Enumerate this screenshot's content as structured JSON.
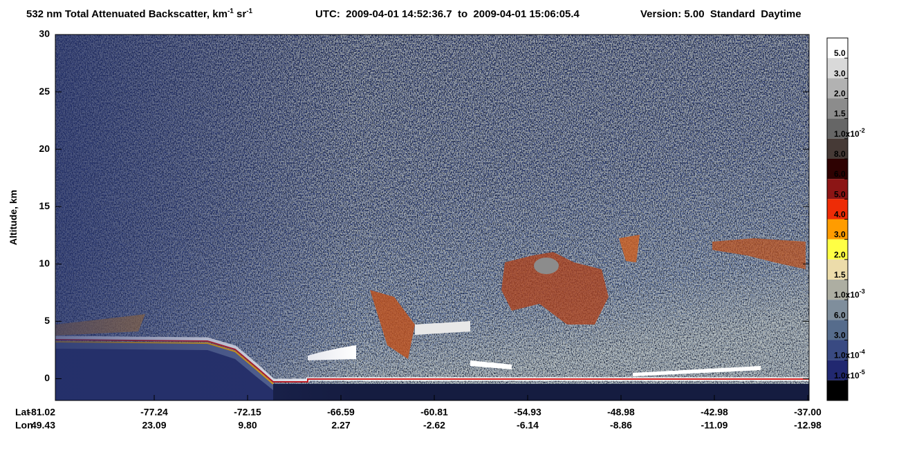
{
  "chart_data": {
    "type": "curtain",
    "title": {
      "text": "532 nm Total Attenuated Backscatter, km",
      "sup1": "-1",
      "mid": " sr",
      "sup2": "-1"
    },
    "utc": "UTC:  2009-04-01 14:52:36.7  to  2009-04-01 15:06:05.4",
    "version": "Version: 5.00  Standard  Daytime",
    "y_label": "Altitude, km",
    "ylim": [
      -1.9,
      30
    ],
    "yticks": [
      0,
      5,
      10,
      15,
      20,
      25,
      30
    ],
    "x_row_labels": [
      "Lat",
      "Lon"
    ],
    "lat": [
      -81.02,
      -77.24,
      -72.15,
      -66.59,
      -60.81,
      -54.93,
      -48.98,
      -42.98,
      {
        "value": -37,
        "label": "-37.00"
      }
    ],
    "lon": [
      49.43,
      23.09,
      {
        "value": 9.8,
        "label": "9.80"
      },
      2.27,
      -2.62,
      -6.14,
      -8.86,
      -11.09,
      -12.98
    ],
    "colorbar": {
      "colors": [
        "#ffffff",
        "#d9d9d9",
        "#b2b2b2",
        "#8c8c8c",
        "#666666",
        "#463a36",
        "#2e0202",
        "#8c1515",
        "#ee2c06",
        "#ff9c00",
        "#ffff44",
        "#ecdcaa",
        "#adaea2",
        "#7f8e9c",
        "#566c8c",
        "#394a82",
        "#212870",
        "#000000"
      ],
      "labels": [
        {
          "text": "5.0"
        },
        {
          "text": "3.0"
        },
        {
          "text": "2.0"
        },
        {
          "text": "1.5"
        },
        {
          "text": "1.0x10",
          "exp": "-2"
        },
        {
          "text": "8.0"
        },
        {
          "text": "6.0"
        },
        {
          "text": "5.0"
        },
        {
          "text": "4.0"
        },
        {
          "text": "3.0"
        },
        {
          "text": "2.0"
        },
        {
          "text": "1.5"
        },
        {
          "text": "1.0x10",
          "exp": "-3"
        },
        {
          "text": "6.0"
        },
        {
          "text": "3.0"
        },
        {
          "text": "1.0x10",
          "exp": "-4"
        },
        {
          "text": "1.0x10",
          "exp": "-5"
        }
      ]
    }
  }
}
